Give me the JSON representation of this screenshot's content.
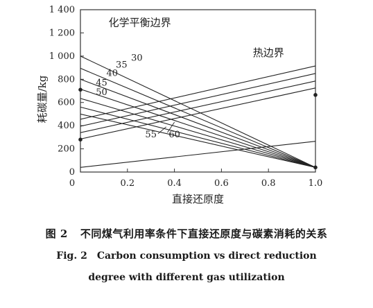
{
  "chart_data": {
    "type": "line",
    "title": "",
    "xlabel": "直接还原度",
    "ylabel": "耗碳量/kg",
    "xlim": [
      0,
      1.0
    ],
    "ylim": [
      0,
      1400
    ],
    "x_ticks": [
      "0",
      "0.2",
      "0.4",
      "0.6",
      "0.8",
      "1.0"
    ],
    "y_ticks": [
      "0",
      "200",
      "400",
      "600",
      "800",
      "1 000",
      "1 200",
      "1 400"
    ],
    "grid": false,
    "regions": {
      "chemical_equilibrium_label": "化学平衡边界",
      "thermal_label": "热边界"
    },
    "chemical_equilibrium_series": [
      {
        "name": "30",
        "x": [
          0,
          1.0
        ],
        "y": [
          1000,
          40
        ]
      },
      {
        "name": "35",
        "x": [
          0,
          1.0
        ],
        "y": [
          895,
          40
        ]
      },
      {
        "name": "40",
        "x": [
          0,
          1.0
        ],
        "y": [
          800,
          40
        ]
      },
      {
        "name": "45",
        "x": [
          0,
          1.0
        ],
        "y": [
          715,
          40
        ]
      },
      {
        "name": "50",
        "x": [
          0,
          1.0
        ],
        "y": [
          635,
          40
        ]
      },
      {
        "name": "55",
        "x": [
          0,
          1.0
        ],
        "y": [
          560,
          40
        ]
      },
      {
        "name": "60",
        "x": [
          0,
          1.0
        ],
        "y": [
          500,
          40
        ]
      }
    ],
    "thermal_series": [
      {
        "x": [
          0,
          1.0
        ],
        "y": [
          455,
          915
        ]
      },
      {
        "x": [
          0,
          1.0
        ],
        "y": [
          395,
          850
        ]
      },
      {
        "x": [
          0,
          1.0
        ],
        "y": [
          340,
          785
        ]
      },
      {
        "x": [
          0,
          1.0
        ],
        "y": [
          285,
          725
        ]
      },
      {
        "x": [
          0,
          1.0
        ],
        "y": [
          40,
          265
        ]
      }
    ],
    "markers": [
      {
        "x": 0,
        "y": 710
      },
      {
        "x": 0,
        "y": 280
      },
      {
        "x": 1.0,
        "y": 665
      },
      {
        "x": 1.0,
        "y": 40
      }
    ],
    "series_label_positions": {
      "30": [
        0.24,
        960
      ],
      "35": [
        0.175,
        900
      ],
      "40": [
        0.135,
        830
      ],
      "45": [
        0.09,
        745
      ],
      "50": [
        0.09,
        665
      ],
      "55": [
        0.3,
        300
      ],
      "60": [
        0.4,
        300
      ]
    },
    "region_label_positions": {
      "chemical": [
        0.12,
        1260
      ],
      "thermal": [
        0.8,
        1000
      ]
    },
    "pointer_lines": [
      {
        "from": [
          0.33,
          330
        ],
        "to": [
          0.365,
          390
        ]
      },
      {
        "from": [
          0.37,
          340
        ],
        "to": [
          0.4,
          430
        ]
      }
    ]
  },
  "caption": {
    "zh_fig_no": "图 2",
    "zh_text": "不同煤气利用率条件下直接还原度与碳素消耗的关系",
    "en_fig_no": "Fig. 2",
    "en_line1": "Carbon consumption vs direct reduction",
    "en_line2": "degree with different gas utilization"
  }
}
